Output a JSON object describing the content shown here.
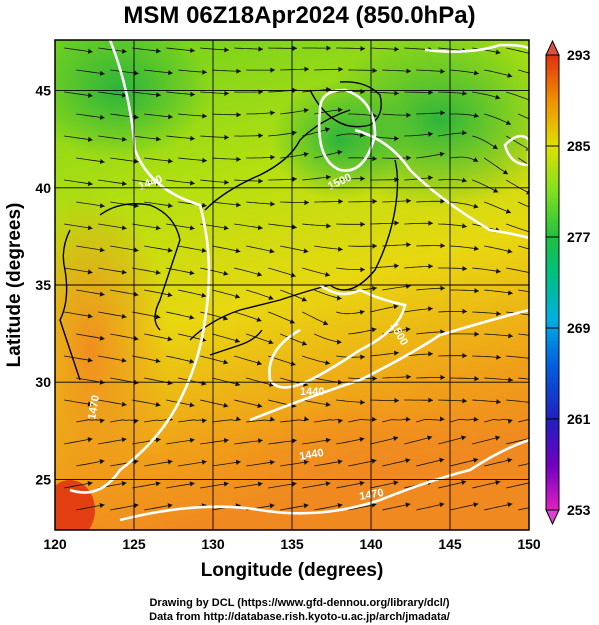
{
  "header": {
    "title": "MSM 06Z18Apr2024 (850.0hPa)"
  },
  "axes": {
    "xlabel": "Longitude (degrees)",
    "ylabel": "Latitude  (degrees)",
    "x_ticks": [
      "120",
      "125",
      "130",
      "135",
      "140",
      "145",
      "150"
    ],
    "y_ticks": [
      "25",
      "30",
      "35",
      "40",
      "45"
    ],
    "xlim": [
      120,
      150
    ],
    "ylim": [
      22.4,
      47.6
    ]
  },
  "colorbar": {
    "ticks": [
      "293",
      "285",
      "277",
      "269",
      "261",
      "253"
    ],
    "range": [
      253,
      293
    ]
  },
  "contour_labels": [
    "1440",
    "1500",
    "1440",
    "1500",
    "1440",
    "1470",
    "1470"
  ],
  "footer": {
    "line1": "Drawing by DCL (https://www.gfd-dennou.org/library/dcl/)",
    "line2": "Data from http://database.rish.kyoto-u.ac.jp/arch/jmadata/"
  }
}
